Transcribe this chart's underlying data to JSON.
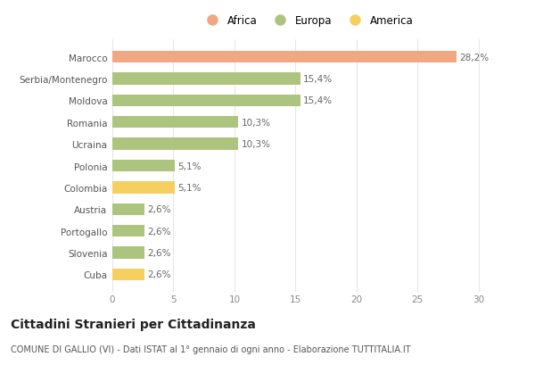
{
  "countries": [
    "Marocco",
    "Serbia/Montenegro",
    "Moldova",
    "Romania",
    "Ucraina",
    "Polonia",
    "Colombia",
    "Austria",
    "Portogallo",
    "Slovenia",
    "Cuba"
  ],
  "values": [
    28.2,
    15.4,
    15.4,
    10.3,
    10.3,
    5.1,
    5.1,
    2.6,
    2.6,
    2.6,
    2.6
  ],
  "labels": [
    "28,2%",
    "15,4%",
    "15,4%",
    "10,3%",
    "10,3%",
    "5,1%",
    "5,1%",
    "2,6%",
    "2,6%",
    "2,6%",
    "2,6%"
  ],
  "colors": [
    "#f0a882",
    "#adc47e",
    "#adc47e",
    "#adc47e",
    "#adc47e",
    "#adc47e",
    "#f5d060",
    "#adc47e",
    "#adc47e",
    "#adc47e",
    "#f5d060"
  ],
  "legend": [
    {
      "label": "Africa",
      "color": "#f0a882"
    },
    {
      "label": "Europa",
      "color": "#adc47e"
    },
    {
      "label": "America",
      "color": "#f5d060"
    }
  ],
  "xlim": [
    0,
    32
  ],
  "xticks": [
    0,
    5,
    10,
    15,
    20,
    25,
    30
  ],
  "title": "Cittadini Stranieri per Cittadinanza",
  "subtitle": "COMUNE DI GALLIO (VI) - Dati ISTAT al 1° gennaio di ogni anno - Elaborazione TUTTITALIA.IT",
  "bg_color": "#ffffff",
  "grid_color": "#e8e8e8",
  "bar_height": 0.55,
  "label_fontsize": 7.5,
  "tick_fontsize": 7.5,
  "title_fontsize": 10,
  "subtitle_fontsize": 7.0,
  "legend_fontsize": 8.5
}
